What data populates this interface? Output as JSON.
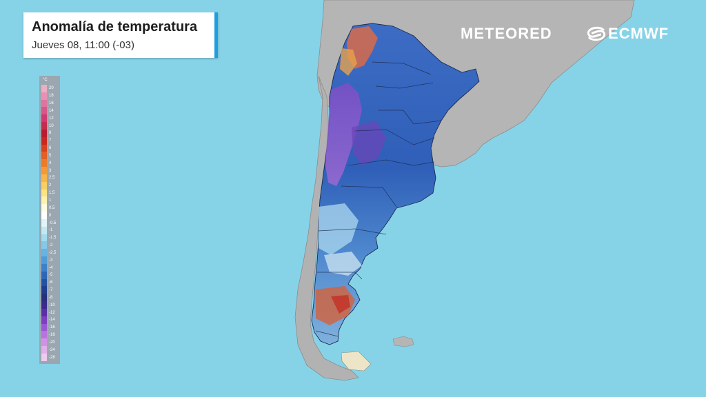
{
  "title": "Anomalía de temperatura",
  "subtitle": "Jueves 08, 11:00 (-03)",
  "legend": {
    "unit": "°C",
    "labels": [
      "20",
      "18",
      "16",
      "14",
      "12",
      "10",
      "8",
      "7",
      "6",
      "5",
      "4",
      "3",
      "2.5",
      "2",
      "1.5",
      "1",
      "0.5",
      "0",
      "-0.5",
      "-1",
      "-1.5",
      "-2",
      "-2.5",
      "-3",
      "-4",
      "-5",
      "-6",
      "-7",
      "-8",
      "-10",
      "-12",
      "-14",
      "-16",
      "-18",
      "-20",
      "-24",
      "-28"
    ],
    "colors": [
      "#e9b0c4",
      "#e592b3",
      "#dd75a0",
      "#d7578b",
      "#cf3a70",
      "#c62a4f",
      "#b71b2f",
      "#c9271e",
      "#d8411d",
      "#e35f22",
      "#ec7c2a",
      "#f29a37",
      "#f6b64b",
      "#f8cf64",
      "#fae486",
      "#fcf3b0",
      "#fdfce0",
      "#ffffff",
      "#e1f4f7",
      "#c2e9f2",
      "#a3dbed",
      "#84c9e8",
      "#67b3e1",
      "#4f9cd7",
      "#3b82c9",
      "#2d68b7",
      "#2352a3",
      "#1f3f8e",
      "#26317c",
      "#3b2a8c",
      "#5a2fa6",
      "#7c3fc0",
      "#9b57d2",
      "#b874dc",
      "#d093e3",
      "#e0b1e8",
      "#ecccef"
    ]
  },
  "brands": {
    "meteored": "METEORED",
    "ecmwf": "ECMWF"
  },
  "colors": {
    "ocean": "#86d3e8",
    "land": "#b8b8b8",
    "card_accent": "#1e9ee0"
  }
}
